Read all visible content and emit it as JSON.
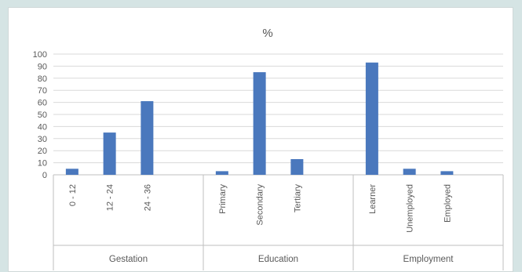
{
  "chart_data": {
    "type": "bar",
    "title": "%",
    "xlabel": "",
    "ylabel": "",
    "ylim": [
      0,
      100
    ],
    "yticks": [
      "0",
      "10",
      "20",
      "30",
      "40",
      "50",
      "60",
      "70",
      "80",
      "90",
      "100"
    ],
    "groups": [
      {
        "name": "Gestation",
        "categories": [
          "0 - 12",
          "12 - 24",
          "24 - 36"
        ],
        "values": [
          5,
          35,
          61
        ]
      },
      {
        "name": "Education",
        "categories": [
          "Primary",
          "Secondary",
          "Tertiary"
        ],
        "values": [
          3,
          85,
          13
        ]
      },
      {
        "name": "Employment",
        "categories": [
          "Learner",
          "Unemployed",
          "Employed"
        ],
        "values": [
          93,
          5,
          3
        ]
      }
    ],
    "bar_color": "#4a78bd",
    "gridlines": true,
    "legend": "none"
  }
}
